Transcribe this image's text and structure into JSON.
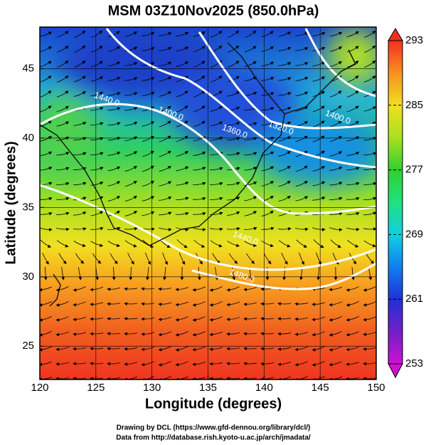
{
  "title": "MSM 03Z10Nov2025 (850.0hPa)",
  "map": {
    "xlabel": "Longitude (degrees)",
    "ylabel": "Latitude  (degrees)",
    "xlim": [
      120,
      150
    ],
    "ylim": [
      22.6,
      48
    ],
    "xticks": [
      120,
      125,
      130,
      135,
      140,
      145,
      150
    ],
    "yticks": [
      25,
      30,
      35,
      40,
      45
    ],
    "grid": true
  },
  "colorbar": {
    "lim": [
      253,
      293
    ],
    "ticks": [
      253,
      261,
      269,
      277,
      285,
      293
    ]
  },
  "contour_labels": [
    "1440.0",
    "1400.0",
    "1360.0",
    "1320.0",
    "1400.0",
    "1440.0",
    "1480.0"
  ],
  "footer": [
    "Drawing by DCL (https://www.gfd-dennou.org/library/dcl/)",
    "Data from http://database.rish.kyoto-u.ac.jp/arch/jmadata/"
  ]
}
